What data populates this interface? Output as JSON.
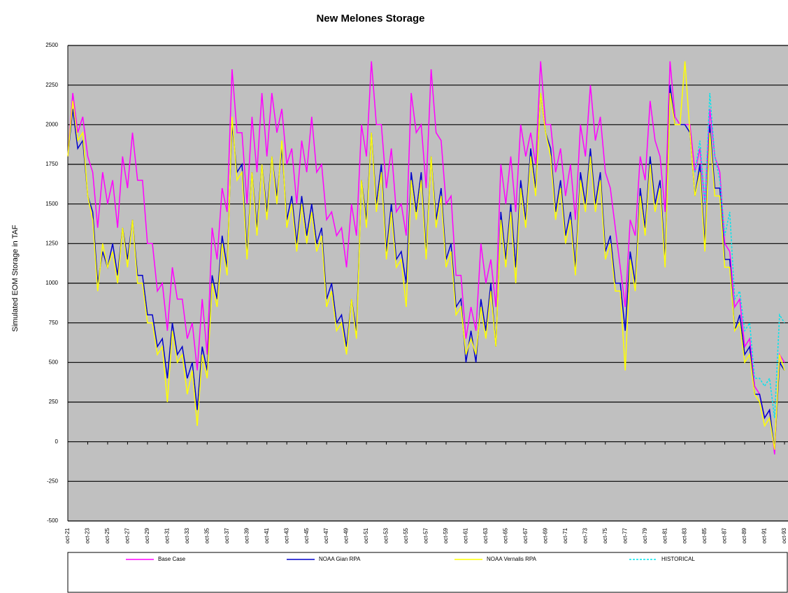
{
  "chart_data": {
    "type": "line",
    "title": "New Melones  Storage",
    "y_label": "Simulated EOM Storage in TAF",
    "categories": [
      "oct-21",
      null,
      null,
      null,
      "oct-23",
      null,
      null,
      null,
      "oct-25",
      null,
      null,
      null,
      "oct-27",
      null,
      null,
      null,
      "oct-29",
      null,
      null,
      null,
      "oct-31",
      null,
      null,
      null,
      "oct-33",
      null,
      null,
      null,
      "oct-35",
      null,
      null,
      null,
      "oct-37",
      null,
      null,
      null,
      "oct-39",
      null,
      null,
      null,
      "oct-41",
      null,
      null,
      null,
      "oct-43",
      null,
      null,
      null,
      "oct-45",
      null,
      null,
      null,
      "oct-47",
      null,
      null,
      null,
      "oct-49",
      null,
      null,
      null,
      "oct-51",
      null,
      null,
      null,
      "oct-53",
      null,
      null,
      null,
      "oct-55",
      null,
      null,
      null,
      "oct-57",
      null,
      null,
      null,
      "oct-59",
      null,
      null,
      null,
      "oct-61",
      null,
      null,
      null,
      "oct-63",
      null,
      null,
      null,
      "oct-65",
      null,
      null,
      null,
      "oct-67",
      null,
      null,
      null,
      "oct-69",
      null,
      null,
      null,
      "oct-71",
      null,
      null,
      null,
      "oct-73",
      null,
      null,
      null,
      "oct-75",
      null,
      null,
      null,
      "oct-77",
      null,
      null,
      null,
      "oct-79",
      null,
      null,
      null,
      "oct-81",
      null,
      null,
      null,
      "oct-83",
      null,
      null,
      null,
      "oct-85",
      null,
      null,
      null,
      "oct-87",
      null,
      null,
      null,
      "oct-89",
      null,
      null,
      null,
      "oct-91",
      null,
      null,
      null,
      "oct-93"
    ],
    "series": [
      {
        "name": "Base Case",
        "color": "#ff00ff",
        "dashed": false,
        "values": [
          1800,
          2200,
          1950,
          2050,
          1800,
          1700,
          1350,
          1700,
          1500,
          1650,
          1350,
          1800,
          1600,
          1950,
          1650,
          1650,
          1250,
          1250,
          950,
          1000,
          700,
          1100,
          900,
          900,
          650,
          750,
          450,
          900,
          550,
          1350,
          1150,
          1600,
          1450,
          2350,
          1950,
          1950,
          1500,
          2050,
          1700,
          2200,
          1800,
          2200,
          1950,
          2100,
          1750,
          1850,
          1500,
          1900,
          1700,
          2050,
          1700,
          1750,
          1400,
          1450,
          1300,
          1350,
          1100,
          1500,
          1300,
          2000,
          1800,
          2400,
          2000,
          2000,
          1600,
          1850,
          1450,
          1500,
          1300,
          2200,
          1950,
          2000,
          1600,
          2350,
          1950,
          1900,
          1500,
          1550,
          1050,
          1050,
          650,
          850,
          700,
          1250,
          1000,
          1150,
          850,
          1750,
          1500,
          1800,
          1450,
          2000,
          1800,
          1950,
          1750,
          2400,
          2000,
          2000,
          1700,
          1850,
          1550,
          1750,
          1400,
          2000,
          1800,
          2250,
          1900,
          2050,
          1700,
          1600,
          1350,
          1100,
          850,
          1400,
          1300,
          1800,
          1650,
          2150,
          1900,
          1800,
          1450,
          2400,
          2050,
          2000,
          2000,
          2000,
          1700,
          1850,
          1500,
          2100,
          1800,
          1700,
          1250,
          1200,
          850,
          900,
          600,
          650,
          350,
          300,
          150,
          200,
          -80,
          550,
          500
        ]
      },
      {
        "name": "NOAA Gian RPA",
        "color": "#0000cc",
        "dashed": false,
        "values": [
          1800,
          2100,
          1850,
          1900,
          1550,
          1450,
          1000,
          1200,
          1100,
          1250,
          1050,
          1350,
          1150,
          1400,
          1050,
          1050,
          800,
          800,
          600,
          650,
          400,
          750,
          550,
          600,
          400,
          500,
          200,
          600,
          450,
          1050,
          900,
          1300,
          1100,
          2000,
          1700,
          1750,
          1200,
          1700,
          1350,
          1750,
          1450,
          1800,
          1550,
          1850,
          1400,
          1550,
          1250,
          1550,
          1300,
          1500,
          1250,
          1350,
          900,
          1000,
          750,
          800,
          600,
          900,
          700,
          1650,
          1400,
          1950,
          1500,
          1750,
          1200,
          1500,
          1150,
          1200,
          1000,
          1700,
          1450,
          1700,
          1200,
          1800,
          1400,
          1600,
          1150,
          1250,
          850,
          900,
          500,
          700,
          500,
          900,
          700,
          1000,
          600,
          1450,
          1150,
          1500,
          1100,
          1650,
          1400,
          1850,
          1600,
          2200,
          1950,
          1850,
          1450,
          1650,
          1300,
          1450,
          1100,
          1700,
          1500,
          1850,
          1500,
          1700,
          1200,
          1300,
          1000,
          1000,
          700,
          1200,
          1000,
          1600,
          1350,
          1800,
          1500,
          1650,
          1150,
          2250,
          2000,
          2000,
          2000,
          1950,
          1550,
          1750,
          1250,
          2000,
          1600,
          1600,
          1150,
          1150,
          700,
          800,
          550,
          600,
          300,
          300,
          150,
          200,
          -50,
          500,
          450
        ]
      },
      {
        "name": "NOAA Vernalis RPA",
        "color": "#ffff00",
        "dashed": false,
        "values": [
          1800,
          2150,
          1900,
          1950,
          1550,
          1400,
          950,
          1250,
          1100,
          1200,
          1000,
          1350,
          1100,
          1400,
          1000,
          1000,
          750,
          750,
          550,
          600,
          250,
          700,
          500,
          550,
          300,
          450,
          100,
          550,
          400,
          1000,
          850,
          1250,
          1050,
          2050,
          1650,
          1700,
          1150,
          1700,
          1300,
          1750,
          1400,
          1800,
          1500,
          1900,
          1350,
          1500,
          1200,
          1500,
          1250,
          1450,
          1200,
          1300,
          850,
          950,
          700,
          750,
          550,
          900,
          650,
          1650,
          1350,
          1950,
          1450,
          1700,
          1150,
          1450,
          1100,
          1150,
          850,
          1650,
          1400,
          1650,
          1150,
          1800,
          1350,
          1550,
          1100,
          1200,
          800,
          850,
          550,
          650,
          550,
          850,
          650,
          950,
          600,
          1400,
          1100,
          1450,
          1000,
          1600,
          1350,
          1800,
          1550,
          2200,
          1950,
          1800,
          1400,
          1600,
          1250,
          1400,
          1050,
          1650,
          1450,
          1800,
          1450,
          1650,
          1150,
          1250,
          950,
          950,
          450,
          1150,
          950,
          1550,
          1300,
          1750,
          1450,
          1600,
          1100,
          2200,
          2000,
          2000,
          2400,
          1950,
          1550,
          1700,
          1200,
          1950,
          1550,
          1550,
          1100,
          1100,
          700,
          750,
          500,
          550,
          300,
          250,
          100,
          150,
          -50,
          550,
          450
        ]
      },
      {
        "name": "HISTORICAL",
        "color": "#00e5ee",
        "dashed": true,
        "values": [
          null,
          null,
          null,
          null,
          null,
          null,
          null,
          null,
          null,
          null,
          null,
          null,
          null,
          null,
          null,
          null,
          null,
          null,
          null,
          null,
          null,
          null,
          null,
          null,
          null,
          null,
          null,
          null,
          null,
          null,
          null,
          null,
          null,
          null,
          null,
          null,
          null,
          null,
          null,
          null,
          null,
          null,
          null,
          null,
          null,
          null,
          null,
          null,
          null,
          null,
          null,
          null,
          null,
          null,
          null,
          null,
          null,
          null,
          null,
          null,
          null,
          null,
          null,
          null,
          null,
          null,
          null,
          null,
          null,
          null,
          null,
          null,
          null,
          null,
          null,
          null,
          null,
          null,
          null,
          null,
          null,
          null,
          null,
          null,
          null,
          null,
          null,
          null,
          null,
          null,
          null,
          null,
          null,
          null,
          null,
          null,
          null,
          null,
          null,
          null,
          null,
          null,
          null,
          null,
          null,
          null,
          null,
          null,
          null,
          null,
          null,
          null,
          null,
          null,
          null,
          null,
          null,
          null,
          null,
          null,
          null,
          null,
          null,
          null,
          null,
          null,
          1700,
          1900,
          1500,
          2200,
          1800,
          1650,
          1300,
          1450,
          900,
          950,
          700,
          750,
          400,
          400,
          350,
          400,
          150,
          800,
          750
        ]
      }
    ],
    "ylim": [
      -500,
      2500
    ],
    "yticks": [
      -500,
      -250,
      0,
      250,
      500,
      750,
      1000,
      1250,
      1500,
      1750,
      2000,
      2250,
      2500
    ],
    "grid": true,
    "legend": "bottom"
  }
}
